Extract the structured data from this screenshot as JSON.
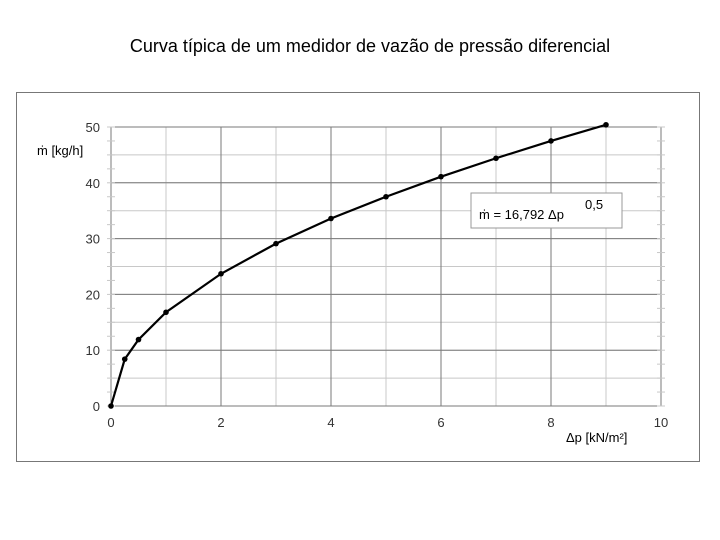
{
  "title": "Curva típica de um medidor de vazão de pressão diferencial",
  "chart_data": {
    "type": "line",
    "title": "Curva típica de um medidor de vazão de pressão diferencial",
    "xlabel": "Δp [kN/m²]",
    "ylabel": "ṁ [kg/h]",
    "xlim": [
      0,
      10
    ],
    "ylim": [
      0,
      50
    ],
    "x_ticks": [
      0,
      2,
      4,
      6,
      8,
      10
    ],
    "y_ticks": [
      0,
      10,
      20,
      30,
      40,
      50
    ],
    "grid": true,
    "x": [
      0,
      0.25,
      0.5,
      1,
      2,
      3,
      4,
      5,
      6,
      7,
      8,
      9
    ],
    "series": [
      {
        "values": [
          0,
          8.4,
          11.9,
          16.8,
          23.7,
          29.1,
          33.6,
          37.5,
          41.1,
          44.4,
          47.5,
          50.4
        ]
      }
    ],
    "annotations": [
      {
        "text": "ṁ = 16,792  Δp",
        "exponent": "0,5"
      }
    ]
  }
}
